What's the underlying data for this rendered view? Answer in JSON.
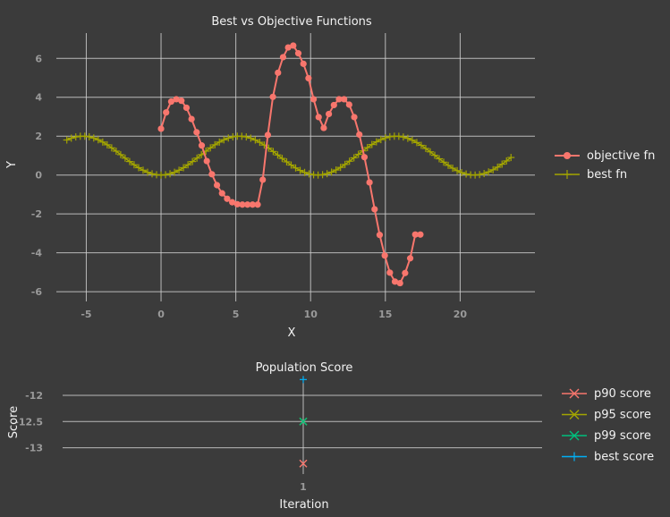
{
  "chart_data": [
    {
      "type": "line",
      "title": "Best vs Objective Functions",
      "xlabel": "X",
      "ylabel": "Y",
      "xlim": [
        -7,
        25
      ],
      "ylim": [
        -6.5,
        7.3
      ],
      "xticks": [
        -5,
        0,
        5,
        10,
        15,
        20
      ],
      "yticks": [
        -6,
        -4,
        -2,
        0,
        2,
        4,
        6
      ],
      "grid": true,
      "legend_position": "right",
      "series": [
        {
          "name": "objective fn",
          "color": "#f8766d",
          "marker": "circle",
          "x": [
            0,
            0.34,
            0.68,
            1.02,
            1.36,
            1.7,
            2.04,
            2.38,
            2.72,
            3.06,
            3.4,
            3.74,
            4.08,
            4.42,
            4.76,
            5.1,
            5.44,
            5.78,
            6.12,
            6.46,
            6.8,
            7.14,
            7.48,
            7.82,
            8.16,
            8.5,
            8.84,
            9.18,
            9.52,
            9.86,
            10.2,
            10.54,
            10.88,
            11.22,
            11.56,
            11.9,
            12.24,
            12.58,
            12.92,
            13.26,
            13.6,
            13.94,
            14.28,
            14.62,
            14.96,
            15.3,
            15.64,
            15.98,
            16.32,
            16.66,
            17.0,
            17.34
          ],
          "y": [
            2.38,
            3.22,
            3.78,
            3.9,
            3.82,
            3.46,
            2.88,
            2.2,
            1.52,
            0.72,
            0.04,
            -0.52,
            -0.94,
            -1.22,
            -1.4,
            -1.5,
            -1.52,
            -1.52,
            -1.52,
            -1.52,
            -0.24,
            2.06,
            4.02,
            5.26,
            6.06,
            6.56,
            6.66,
            6.26,
            5.72,
            4.98,
            3.9,
            2.98,
            2.42,
            3.14,
            3.6,
            3.9,
            3.9,
            3.62,
            2.98,
            2.08,
            0.92,
            -0.38,
            -1.76,
            -3.08,
            -4.14,
            -5.02,
            -5.48,
            -5.56,
            -5.04,
            -4.28,
            -3.06,
            -3.06
          ]
        },
        {
          "name": "best fn",
          "color": "#a3a500",
          "marker": "plus",
          "function": "1 - cos(0.6 * x)",
          "x_start": -6.3,
          "x_end": 23.6,
          "x_step": 0.3
        }
      ]
    },
    {
      "type": "scatter",
      "title": "Population Score",
      "xlabel": "Iteration",
      "ylabel": "Score",
      "xticks": [
        1
      ],
      "yticks": [
        -12,
        -12.5,
        -13
      ],
      "yticklabels": [
        "-12",
        "-12.5",
        "-13"
      ],
      "ylim": [
        -13.5,
        -11.66
      ],
      "grid": true,
      "legend_position": "right",
      "series": [
        {
          "name": "p90 score",
          "color": "#f8766d",
          "marker": "x",
          "x": [
            1
          ],
          "y": [
            -13.3
          ]
        },
        {
          "name": "p95 score",
          "color": "#a3a500",
          "marker": "x",
          "x": [
            1
          ],
          "y": [
            -12.5
          ]
        },
        {
          "name": "p99 score",
          "color": "#00bf7d",
          "marker": "x",
          "x": [
            1
          ],
          "y": [
            -12.5
          ]
        },
        {
          "name": "best score",
          "color": "#00b0f6",
          "marker": "plus",
          "x": [
            1
          ],
          "y": [
            -11.7
          ]
        }
      ]
    }
  ]
}
